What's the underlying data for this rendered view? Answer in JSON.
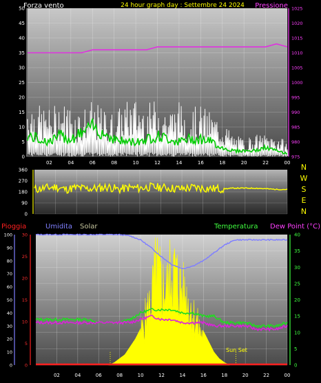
{
  "header": {
    "left_label": "Forza vento",
    "title": "24 hour graph day : Settembre 24 2024",
    "right_label": "Pressione"
  },
  "legend_bottom": {
    "rain": "Pioggia",
    "humidity": "Umidita",
    "solar": "Solar",
    "temperature": "Temperatura",
    "dewpoint": "Dew Point (°C)"
  },
  "annotations": {
    "sunset": "Sun Set"
  },
  "colors": {
    "wind": "#ffffff",
    "gust": "#d9d9d9",
    "avg_wind": "#00cc00",
    "pressure": "#e030e0",
    "direction": "#ffff00",
    "humidity": "#7f7fff",
    "temperature": "#20dd20",
    "dewpoint": "#dd20dd",
    "solar": "#ffff00",
    "rain": "#ff2020"
  },
  "chart_data": [
    {
      "type": "line",
      "name": "wind-pressure",
      "x_ticks": [
        "02",
        "04",
        "06",
        "08",
        "10",
        "12",
        "14",
        "16",
        "18",
        "20",
        "22",
        "00"
      ],
      "y_left_ticks": [
        "0",
        "5",
        "10",
        "15",
        "20",
        "25",
        "30",
        "35",
        "40",
        "45",
        "50"
      ],
      "y_left_range": [
        0,
        50
      ],
      "y_right_ticks": [
        "975",
        "980",
        "985",
        "990",
        "995",
        "1000",
        "1005",
        "1010",
        "1015",
        "1020",
        "1025"
      ],
      "y_right_range": [
        975,
        1025
      ],
      "series": [
        {
          "key": "pressure",
          "x": [
            0,
            1,
            2,
            3,
            4,
            5,
            6,
            7,
            8,
            9,
            10,
            11,
            12,
            13,
            14,
            15,
            16,
            17,
            18,
            19,
            20,
            21,
            22,
            23,
            24
          ],
          "values": [
            1010,
            1010,
            1010,
            1010,
            1010,
            1010,
            1011,
            1011,
            1011,
            1011,
            1011,
            1011,
            1012,
            1012,
            1012,
            1012,
            1012,
            1012,
            1012,
            1012,
            1012,
            1012,
            1012,
            1013,
            1012
          ]
        },
        {
          "key": "wind",
          "x": [
            0,
            1,
            2,
            3,
            4,
            5,
            6,
            7,
            8,
            9,
            10,
            11,
            12,
            13,
            14,
            15,
            16,
            17,
            18,
            19,
            20,
            21,
            22,
            23,
            24
          ],
          "values": [
            16,
            14,
            13,
            15,
            14,
            13,
            15,
            13,
            12,
            15,
            16,
            14,
            16,
            13,
            15,
            13,
            14,
            12,
            10,
            6,
            5,
            6,
            6,
            6,
            4
          ]
        },
        {
          "key": "avg_wind",
          "x": [
            0,
            1,
            2,
            3,
            4,
            5,
            6,
            7,
            8,
            9,
            10,
            11,
            12,
            13,
            14,
            15,
            16,
            17,
            18,
            19,
            20,
            21,
            22,
            23,
            24
          ],
          "values": [
            7,
            6,
            5,
            7,
            6,
            8,
            10,
            8,
            6,
            5,
            5,
            6,
            7,
            6,
            5,
            6,
            6,
            5,
            3,
            2,
            2,
            2,
            3,
            2,
            1
          ]
        }
      ]
    },
    {
      "type": "line",
      "name": "wind-direction",
      "x_ticks": [
        "02",
        "04",
        "06",
        "08",
        "10",
        "12",
        "14",
        "16",
        "18",
        "20",
        "22",
        "00"
      ],
      "y_ticks": [
        "0",
        "90",
        "180",
        "270",
        "360"
      ],
      "y_range": [
        0,
        360
      ],
      "compass": [
        "N",
        "W",
        "S",
        "E",
        "N"
      ],
      "series": [
        {
          "key": "direction",
          "x": [
            0,
            1,
            2,
            3,
            4,
            5,
            6,
            7,
            8,
            9,
            10,
            11,
            12,
            13,
            14,
            15,
            16,
            17,
            18,
            19,
            20,
            21,
            22,
            23,
            24
          ],
          "values": [
            200,
            210,
            220,
            200,
            215,
            205,
            210,
            220,
            200,
            215,
            210,
            220,
            215,
            210,
            205,
            215,
            210,
            205,
            205,
            210,
            210,
            210,
            205,
            200,
            200
          ]
        }
      ]
    },
    {
      "type": "line",
      "name": "rain-humidity-solar-temp",
      "x_ticks": [
        "02",
        "04",
        "06",
        "08",
        "10",
        "12",
        "14",
        "16",
        "18",
        "20",
        "22",
        "00"
      ],
      "y_hum_ticks": [
        "0",
        "10",
        "20",
        "30",
        "40",
        "50",
        "60",
        "70",
        "80",
        "90",
        "100"
      ],
      "y_hum_range": [
        0,
        100
      ],
      "y_rain_ticks": [
        "0",
        "5",
        "10",
        "15",
        "20",
        "25",
        "30"
      ],
      "y_rain_range": [
        0,
        30
      ],
      "y_temp_ticks": [
        "0",
        "5",
        "10",
        "15",
        "20",
        "25",
        "30",
        "35",
        "40"
      ],
      "y_temp_range": [
        0,
        40
      ],
      "series": [
        {
          "key": "humidity",
          "x": [
            0,
            1,
            2,
            3,
            4,
            5,
            6,
            7,
            8,
            9,
            10,
            11,
            12,
            13,
            14,
            15,
            16,
            17,
            18,
            19,
            20,
            21,
            22,
            23,
            24
          ],
          "values": [
            100,
            100,
            100,
            100,
            100,
            100,
            100,
            100,
            100,
            99,
            96,
            90,
            83,
            77,
            74,
            76,
            80,
            86,
            92,
            96,
            96,
            96,
            96,
            96,
            96
          ]
        },
        {
          "key": "temperature",
          "x": [
            0,
            1,
            2,
            3,
            4,
            5,
            6,
            7,
            8,
            9,
            10,
            11,
            12,
            13,
            14,
            15,
            16,
            17,
            18,
            19,
            20,
            21,
            22,
            23,
            24
          ],
          "values": [
            14,
            14,
            14,
            14,
            14,
            14,
            13,
            13,
            13,
            14,
            16,
            17,
            17,
            17,
            16,
            16,
            15,
            15,
            13,
            13,
            13,
            12,
            12,
            12,
            13
          ]
        },
        {
          "key": "dewpoint",
          "x": [
            0,
            1,
            2,
            3,
            4,
            5,
            6,
            7,
            8,
            9,
            10,
            11,
            12,
            13,
            14,
            15,
            16,
            17,
            18,
            19,
            20,
            21,
            22,
            23,
            24
          ],
          "values": [
            13,
            13,
            13,
            13,
            13,
            13,
            13,
            13,
            13,
            13,
            14,
            15,
            14,
            14,
            13,
            13,
            13,
            12,
            12,
            12,
            12,
            11,
            11,
            11,
            12
          ]
        },
        {
          "key": "solar",
          "x": [
            7,
            7.5,
            8,
            8.5,
            9,
            9.5,
            10,
            10.5,
            11,
            11.5,
            12,
            12.5,
            13,
            13.5,
            14,
            14.5,
            15,
            15.5,
            16,
            16.5,
            17,
            17.5,
            18,
            18.5
          ],
          "values": [
            0,
            2,
            5,
            8,
            14,
            20,
            28,
            45,
            60,
            90,
            75,
            70,
            92,
            80,
            68,
            60,
            48,
            36,
            26,
            18,
            10,
            5,
            2,
            0
          ]
        },
        {
          "key": "rain",
          "x": [
            0,
            24
          ],
          "values": [
            0,
            0
          ]
        }
      ]
    }
  ]
}
